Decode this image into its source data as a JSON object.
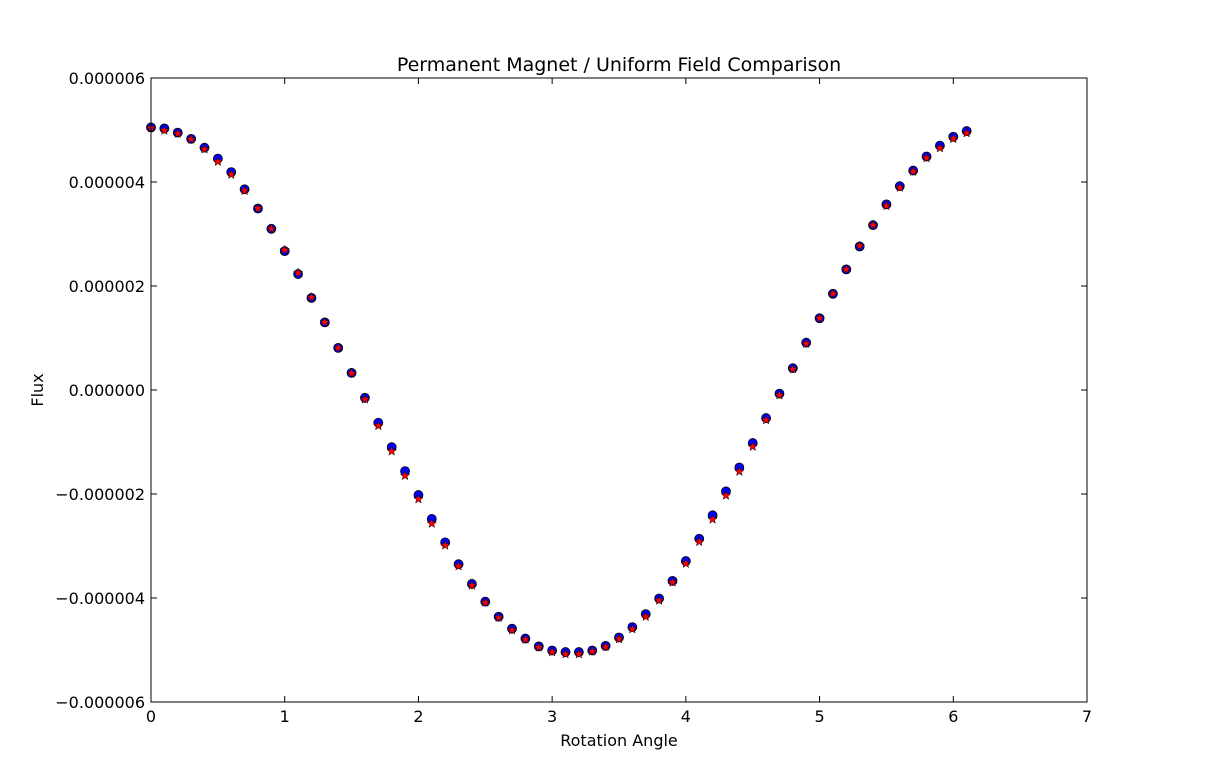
{
  "chart_data": {
    "type": "scatter",
    "title": "Permanent Magnet / Uniform Field Comparison",
    "xlabel": "Rotation Angle",
    "ylabel": "Flux",
    "xlim": [
      0,
      7
    ],
    "ylim": [
      -6e-06,
      6e-06
    ],
    "grid": false,
    "xticks": [
      0,
      1,
      2,
      3,
      4,
      5,
      6,
      7
    ],
    "xtick_labels": [
      "0",
      "1",
      "2",
      "3",
      "4",
      "5",
      "6",
      "7"
    ],
    "yticks": [
      6e-06,
      4e-06,
      2e-06,
      0,
      -2e-06,
      -4e-06,
      -6e-06
    ],
    "ytick_labels": [
      "0.000006",
      "0.000004",
      "0.000002",
      "0.000000",
      "−0.000002",
      "−0.000004",
      "−0.000006"
    ],
    "x": [
      0,
      0.1,
      0.2,
      0.3,
      0.4,
      0.5,
      0.6,
      0.7,
      0.8,
      0.9,
      1.0,
      1.1,
      1.2,
      1.3,
      1.4,
      1.5,
      1.6,
      1.7,
      1.8,
      1.9,
      2.0,
      2.1,
      2.2,
      2.3,
      2.4,
      2.5,
      2.6,
      2.7,
      2.8,
      2.9,
      3.0,
      3.1,
      3.2,
      3.3,
      3.4,
      3.5,
      3.6,
      3.7,
      3.8,
      3.9,
      4.0,
      4.1,
      4.2,
      4.3,
      4.4,
      4.5,
      4.6,
      4.7,
      4.8,
      4.9,
      5.0,
      5.1,
      5.2,
      5.3,
      5.4,
      5.5,
      5.6,
      5.7,
      5.8,
      5.9,
      6.0,
      6.1
    ],
    "series": [
      {
        "name": "Permanent Magnet",
        "marker": "circle",
        "color": "#0000ff",
        "edge_color": "#000000",
        "values": [
          5.05e-06,
          5.03e-06,
          4.95e-06,
          4.83e-06,
          4.66e-06,
          4.45e-06,
          4.19e-06,
          3.86e-06,
          3.49e-06,
          3.1e-06,
          2.67e-06,
          2.23e-06,
          1.77e-06,
          1.3e-06,
          8.1e-07,
          3.3e-07,
          -1.5e-07,
          -6.3e-07,
          -1.1e-06,
          -1.56e-06,
          -2.02e-06,
          -2.48e-06,
          -2.93e-06,
          -3.35e-06,
          -3.73e-06,
          -4.07e-06,
          -4.36e-06,
          -4.59e-06,
          -4.78e-06,
          -4.93e-06,
          -5.01e-06,
          -5.04e-06,
          -5.04e-06,
          -5.01e-06,
          -4.92e-06,
          -4.76e-06,
          -4.56e-06,
          -4.31e-06,
          -4.01e-06,
          -3.67e-06,
          -3.29e-06,
          -2.86e-06,
          -2.41e-06,
          -1.95e-06,
          -1.49e-06,
          -1.02e-06,
          -5.4e-07,
          -7e-08,
          4.2e-07,
          9.1e-07,
          1.38e-06,
          1.85e-06,
          2.32e-06,
          2.76e-06,
          3.17e-06,
          3.57e-06,
          3.92e-06,
          4.22e-06,
          4.49e-06,
          4.7e-06,
          4.87e-06,
          4.98e-06
        ]
      },
      {
        "name": "Uniform Field",
        "marker": "star",
        "color": "#ff0000",
        "edge_color": "#000000",
        "values": [
          5.07e-06,
          5.02e-06,
          4.96e-06,
          4.85e-06,
          4.66e-06,
          4.42e-06,
          4.17e-06,
          3.86e-06,
          3.52e-06,
          3.13e-06,
          2.72e-06,
          2.28e-06,
          1.81e-06,
          1.33e-06,
          8.4e-07,
          3.5e-07,
          -1.5e-07,
          -6.6e-07,
          -1.15e-06,
          -1.62e-06,
          -2.07e-06,
          -2.54e-06,
          -2.96e-06,
          -3.36e-06,
          -3.73e-06,
          -4.06e-06,
          -4.35e-06,
          -4.59e-06,
          -4.77e-06,
          -4.92e-06,
          -5.01e-06,
          -5.05e-06,
          -5.05e-06,
          -5e-06,
          -4.91e-06,
          -4.76e-06,
          -4.57e-06,
          -4.33e-06,
          -4.02e-06,
          -3.67e-06,
          -3.31e-06,
          -2.89e-06,
          -2.46e-06,
          -2e-06,
          -1.54e-06,
          -1.06e-06,
          -5.5e-07,
          -7e-08,
          4.3e-07,
          9.2e-07,
          1.41e-06,
          1.88e-06,
          2.35e-06,
          2.8e-06,
          3.2e-06,
          3.57e-06,
          3.92e-06,
          4.23e-06,
          4.49e-06,
          4.68e-06,
          4.86e-06,
          4.97e-06
        ]
      }
    ]
  }
}
